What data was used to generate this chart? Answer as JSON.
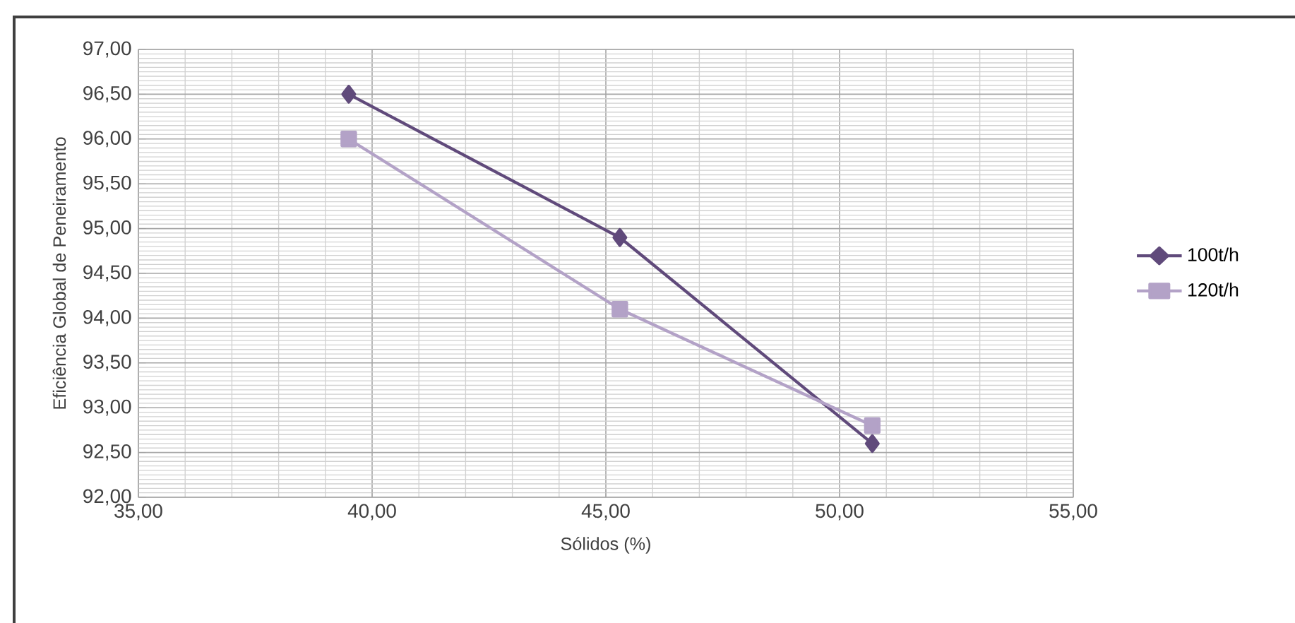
{
  "chart_data": {
    "type": "line",
    "xlabel": "Sólidos (%)",
    "ylabel": "Eficiência Global de Peneiramento",
    "xlim": [
      35,
      55
    ],
    "ylim": [
      92,
      97
    ],
    "xticks": [
      {
        "value": 35,
        "label": "35,00"
      },
      {
        "value": 40,
        "label": "40,00"
      },
      {
        "value": 45,
        "label": "45,00"
      },
      {
        "value": 50,
        "label": "50,00"
      },
      {
        "value": 55,
        "label": "55,00"
      }
    ],
    "yticks": [
      {
        "value": 92,
        "label": "92,00"
      },
      {
        "value": 92.5,
        "label": "92,50"
      },
      {
        "value": 93,
        "label": "93,00"
      },
      {
        "value": 93.5,
        "label": "93,50"
      },
      {
        "value": 94,
        "label": "94,00"
      },
      {
        "value": 94.5,
        "label": "94,50"
      },
      {
        "value": 95,
        "label": "95,00"
      },
      {
        "value": 95.5,
        "label": "95,50"
      },
      {
        "value": 96,
        "label": "96,00"
      },
      {
        "value": 96.5,
        "label": "96,50"
      },
      {
        "value": 97,
        "label": "97,00"
      }
    ],
    "grid": true,
    "legend": "right",
    "line_style": "solid",
    "series": [
      {
        "name": "100t/h",
        "color": "#604a7b",
        "marker": "diamond",
        "x": [
          39.5,
          45.3,
          50.7
        ],
        "values": [
          96.5,
          94.9,
          92.6
        ]
      },
      {
        "name": "120t/h",
        "color": "#b3a2c7",
        "marker": "square",
        "x": [
          39.5,
          45.3,
          50.7
        ],
        "values": [
          96.0,
          94.1,
          92.8
        ]
      }
    ]
  }
}
